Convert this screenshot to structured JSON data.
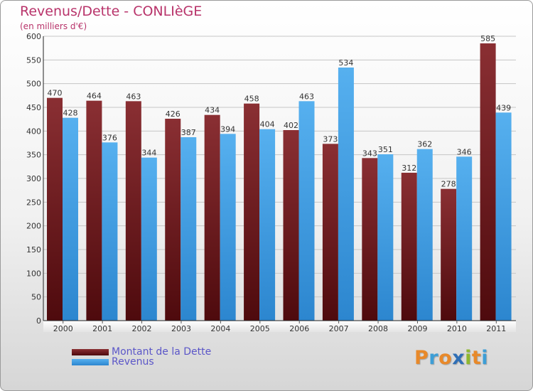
{
  "chart_data": {
    "type": "bar",
    "title": "Revenus/Dette - CONLIèGE",
    "subtitle": "(en milliers d'€)",
    "categories": [
      "2000",
      "2001",
      "2002",
      "2003",
      "2004",
      "2005",
      "2006",
      "2007",
      "2008",
      "2009",
      "2010",
      "2011"
    ],
    "series": [
      {
        "name": "Montant de la Dette",
        "color": "#7a1e22",
        "values": [
          470,
          464,
          463,
          426,
          434,
          458,
          402,
          373,
          343,
          312,
          278,
          585
        ]
      },
      {
        "name": "Revenus",
        "color": "#4aa3e6",
        "values": [
          428,
          376,
          344,
          387,
          394,
          404,
          463,
          534,
          351,
          362,
          346,
          439
        ]
      }
    ],
    "ylim": [
      0,
      600
    ],
    "yticks": [
      0,
      50,
      100,
      150,
      200,
      250,
      300,
      350,
      400,
      450,
      500,
      550,
      600
    ],
    "grid": true,
    "legend_position": "bottom-left"
  },
  "logo": {
    "letters": [
      {
        "ch": "P",
        "color": "#e8892a"
      },
      {
        "ch": "r",
        "color": "#3d9ed6"
      },
      {
        "ch": "o",
        "color": "#e8892a"
      },
      {
        "ch": "x",
        "color": "#2f6fb6"
      },
      {
        "ch": "i",
        "color": "#8fb82f"
      },
      {
        "ch": "t",
        "color": "#e8892a"
      },
      {
        "ch": "i",
        "color": "#3d9ed6"
      }
    ]
  }
}
